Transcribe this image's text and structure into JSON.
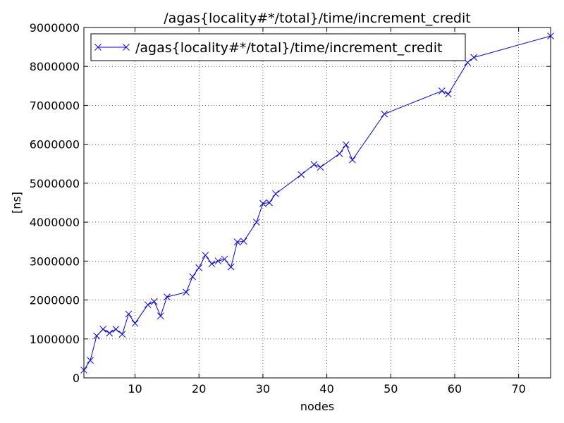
{
  "chart_data": {
    "type": "line",
    "title": "/agas{locality#*/total}/time/increment_credit",
    "xlabel": "nodes",
    "ylabel": "[ns]",
    "xlim": [
      2,
      75
    ],
    "ylim": [
      0,
      9000000
    ],
    "xticks": [
      10,
      20,
      30,
      40,
      50,
      60,
      70
    ],
    "yticks": [
      0,
      1000000,
      2000000,
      3000000,
      4000000,
      5000000,
      6000000,
      7000000,
      8000000,
      9000000
    ],
    "grid": true,
    "legend_position": "top-left",
    "line_color": "#0000ff",
    "marker": "x",
    "series": [
      {
        "name": "/agas{locality#*/total}/time/increment_credit",
        "x": [
          2,
          3,
          4,
          5,
          6,
          7,
          8,
          9,
          10,
          12,
          13,
          14,
          15,
          18,
          19,
          20,
          21,
          22,
          23,
          24,
          25,
          26,
          27,
          29,
          30,
          31,
          32,
          36,
          38,
          39,
          42,
          43,
          44,
          49,
          58,
          59,
          62,
          63,
          75
        ],
        "values": [
          200000,
          450000,
          1080000,
          1250000,
          1150000,
          1250000,
          1120000,
          1640000,
          1400000,
          1880000,
          1960000,
          1590000,
          2080000,
          2200000,
          2600000,
          2830000,
          3150000,
          2930000,
          3000000,
          3050000,
          2850000,
          3490000,
          3510000,
          4000000,
          4480000,
          4500000,
          4730000,
          5220000,
          5480000,
          5410000,
          5760000,
          5990000,
          5600000,
          6780000,
          7370000,
          7290000,
          8100000,
          8230000,
          8780000
        ]
      }
    ]
  }
}
